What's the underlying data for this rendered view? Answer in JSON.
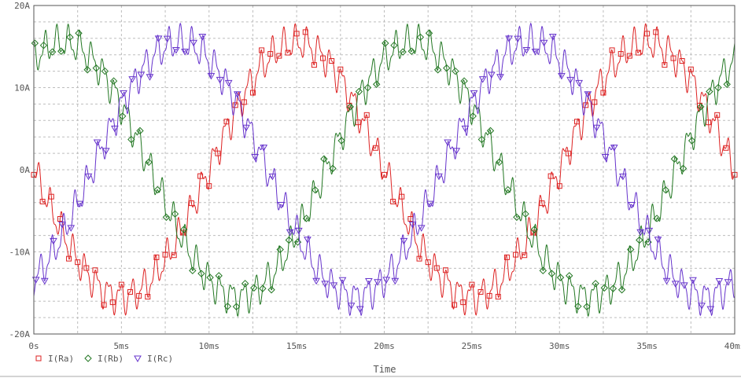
{
  "chart_data": {
    "type": "line",
    "title": "",
    "xlabel": "Time",
    "ylabel": "",
    "xlim": [
      0,
      40
    ],
    "ylim": [
      -20,
      20
    ],
    "x_unit": "ms",
    "y_unit": "A",
    "xticks": [
      0,
      5,
      10,
      15,
      20,
      25,
      30,
      35,
      40
    ],
    "xtick_labels": [
      "0s",
      "5ms",
      "10ms",
      "15ms",
      "20ms",
      "25ms",
      "30ms",
      "35ms",
      "40ms"
    ],
    "yticks": [
      -20,
      -10,
      0,
      10,
      20
    ],
    "ytick_labels": [
      "-20A",
      "-10A",
      "0A",
      "10A",
      "20A"
    ],
    "grid": true,
    "legend_position": "bottom-left",
    "frequency_hz": 50,
    "amplitude_a": 15.5,
    "ripple_amplitude_a": 1.6,
    "ripple_frequency_hz": 1500,
    "series": [
      {
        "name": "I(Ra)",
        "color": "#dd2222",
        "marker": "square",
        "phase_deg": 180
      },
      {
        "name": "I(Rb)",
        "color": "#227722",
        "marker": "diamond",
        "phase_deg": 60
      },
      {
        "name": "I(Rc)",
        "color": "#6633cc",
        "marker": "triangle-down",
        "phase_deg": -60
      }
    ]
  }
}
